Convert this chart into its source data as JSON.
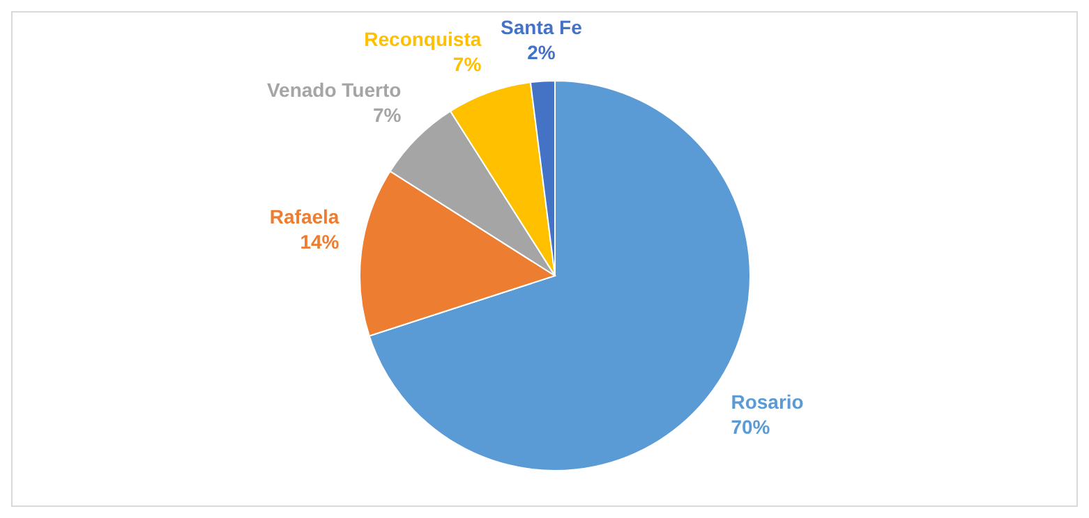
{
  "chart_data": {
    "type": "pie",
    "categories": [
      "Rosario",
      "Rafaela",
      "Venado Tuerto",
      "Reconquista",
      "Santa Fe"
    ],
    "values": [
      70,
      14,
      7,
      7,
      2
    ],
    "colors": [
      "#5b9bd5",
      "#ed7d31",
      "#a5a5a5",
      "#ffc000",
      "#4472c4"
    ],
    "value_labels": [
      "70%",
      "14%",
      "7%",
      "7%",
      "2%"
    ]
  }
}
